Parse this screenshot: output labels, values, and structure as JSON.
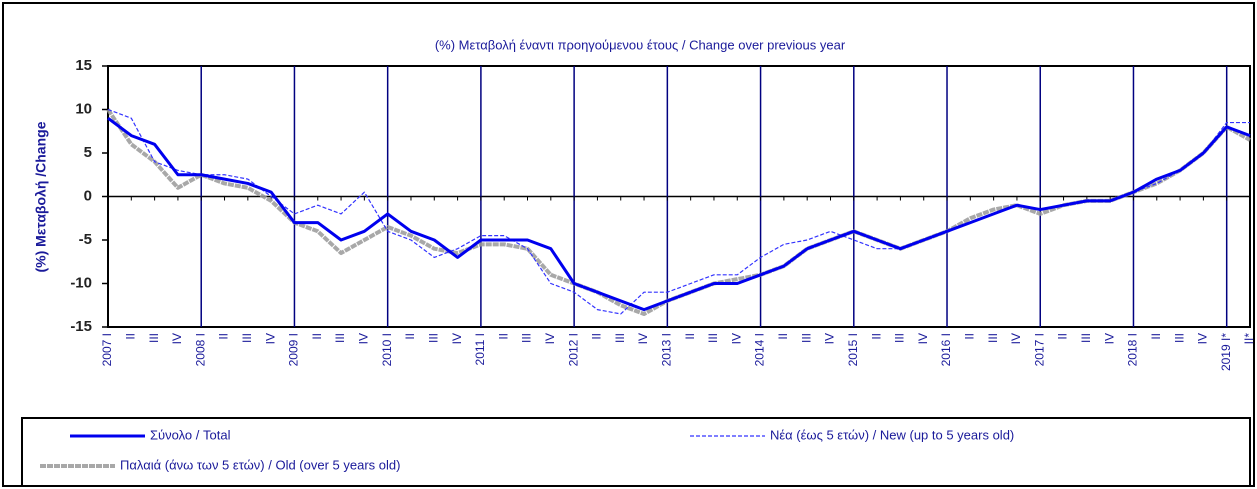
{
  "chart_data": {
    "type": "line",
    "title": "(%) Μεταβολή έναντι προηγούμενου έτους / Change over previous year",
    "y_label": "(%) Μεταβολή /Change",
    "categories": [
      "2007 I",
      "II",
      "III",
      "IV",
      "2008 I",
      "II",
      "III",
      "IV",
      "2009 I",
      "II",
      "III",
      "IV",
      "2010 I",
      "II",
      "III",
      "IV",
      "2011 I",
      "II",
      "III",
      "IV",
      "2012 I",
      "II",
      "III",
      "IV",
      "2013 I",
      "II",
      "III",
      "IV",
      "2014 I",
      "II",
      "III",
      "IV",
      "2015 I",
      "II",
      "III",
      "IV",
      "2016 I",
      "II",
      "III",
      "IV",
      "2017 I",
      "II",
      "III",
      "IV",
      "2018 I",
      "II",
      "III",
      "IV",
      "2019 I*",
      "II*"
    ],
    "series": [
      {
        "name": "Σύνολο / Total",
        "color": "#0000ee",
        "values": [
          9,
          7,
          6,
          2.5,
          2.5,
          2,
          1.5,
          0.5,
          -3,
          -3,
          -5,
          -4,
          -2,
          -4,
          -5,
          -7,
          -5,
          -5,
          -5,
          -6,
          -10,
          -11,
          -12,
          -13,
          -12,
          -11,
          -10,
          -10,
          -9,
          -8,
          -6,
          -5,
          -4,
          -5,
          -6,
          -5,
          -4,
          -3,
          -2,
          -1,
          -1.5,
          -1,
          -0.5,
          -0.5,
          0.5,
          2,
          3,
          5,
          8,
          7
        ]
      },
      {
        "name": "Νέα (έως 5 ετών) / New (up to 5 years old)",
        "color": "#3333ff",
        "values": [
          10,
          9,
          4,
          3,
          2.5,
          2.5,
          2,
          0,
          -2,
          -1,
          -2,
          0.5,
          -4,
          -5,
          -7,
          -6,
          -4.5,
          -4.5,
          -6,
          -10,
          -11,
          -13,
          -13.5,
          -11,
          -11,
          -10,
          -9,
          -9,
          -7,
          -5.5,
          -5,
          -4,
          -5,
          -6,
          -6,
          -5,
          -4,
          -3,
          -2,
          -1,
          -1.5,
          -1,
          -0.5,
          -0.5,
          0.5,
          1.5,
          3,
          5,
          8.5,
          8.5
        ]
      },
      {
        "name": "Παλαιά (άνω των 5 ετών) / Old (over 5 years old)",
        "color": "#999999",
        "values": [
          10,
          6,
          4,
          1,
          2.5,
          1.5,
          1,
          -0.5,
          -3,
          -4,
          -6.5,
          -5,
          -3.5,
          -4.5,
          -6,
          -6.5,
          -5.5,
          -5.5,
          -6,
          -9,
          -10,
          -11,
          -12.5,
          -13.5,
          -12,
          -11,
          -10,
          -9.5,
          -9,
          -8,
          -6,
          -5,
          -4,
          -5,
          -6,
          -5,
          -4,
          -2.5,
          -1.5,
          -1,
          -2,
          -1,
          -0.5,
          -0.5,
          0.5,
          1.5,
          3,
          5,
          8,
          6.5
        ]
      }
    ],
    "ylim": [
      -15,
      15
    ],
    "yticks": [
      -15,
      -10,
      -5,
      0,
      5,
      10,
      15
    ]
  }
}
